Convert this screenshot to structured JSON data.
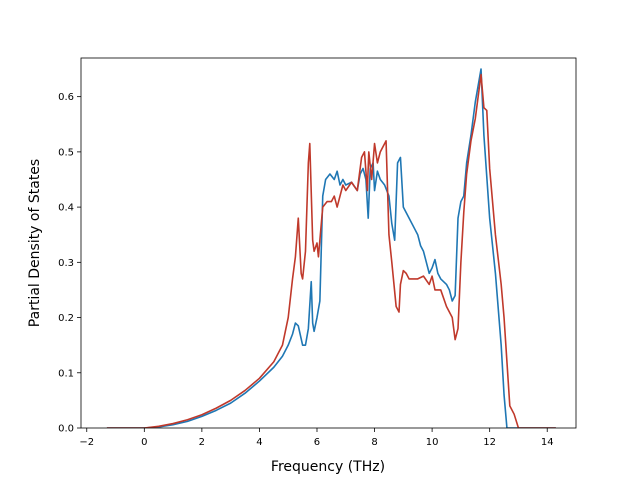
{
  "chart_data": {
    "type": "line",
    "title": "",
    "xlabel": "Frequency (THz)",
    "ylabel": "Partial Density of States",
    "xlim": [
      -2.2,
      15.0
    ],
    "ylim": [
      0.0,
      0.67
    ],
    "xticks": [
      -2,
      0,
      2,
      4,
      6,
      8,
      10,
      12,
      14
    ],
    "yticks": [
      0.0,
      0.1,
      0.2,
      0.3,
      0.4,
      0.5,
      0.6
    ],
    "xtick_labels": [
      "−2",
      "0",
      "2",
      "4",
      "6",
      "8",
      "10",
      "12",
      "14"
    ],
    "ytick_labels": [
      "0.0",
      "0.1",
      "0.2",
      "0.3",
      "0.4",
      "0.5",
      "0.6"
    ],
    "grid": false,
    "legend": "none",
    "series": [
      {
        "color": "#1f77b4",
        "points": [
          [
            -1.3,
            0.0
          ],
          [
            0.0,
            0.0
          ],
          [
            0.5,
            0.002
          ],
          [
            1.0,
            0.006
          ],
          [
            1.5,
            0.012
          ],
          [
            2.0,
            0.021
          ],
          [
            2.5,
            0.032
          ],
          [
            3.0,
            0.045
          ],
          [
            3.5,
            0.063
          ],
          [
            4.0,
            0.085
          ],
          [
            4.5,
            0.11
          ],
          [
            4.8,
            0.13
          ],
          [
            5.0,
            0.15
          ],
          [
            5.15,
            0.17
          ],
          [
            5.25,
            0.19
          ],
          [
            5.35,
            0.185
          ],
          [
            5.5,
            0.15
          ],
          [
            5.6,
            0.15
          ],
          [
            5.7,
            0.18
          ],
          [
            5.8,
            0.265
          ],
          [
            5.85,
            0.19
          ],
          [
            5.9,
            0.175
          ],
          [
            6.0,
            0.2
          ],
          [
            6.1,
            0.23
          ],
          [
            6.2,
            0.42
          ],
          [
            6.3,
            0.45
          ],
          [
            6.45,
            0.46
          ],
          [
            6.6,
            0.45
          ],
          [
            6.7,
            0.465
          ],
          [
            6.8,
            0.44
          ],
          [
            6.9,
            0.45
          ],
          [
            7.0,
            0.44
          ],
          [
            7.2,
            0.445
          ],
          [
            7.4,
            0.43
          ],
          [
            7.5,
            0.46
          ],
          [
            7.6,
            0.47
          ],
          [
            7.7,
            0.45
          ],
          [
            7.78,
            0.38
          ],
          [
            7.85,
            0.47
          ],
          [
            7.95,
            0.48
          ],
          [
            8.0,
            0.43
          ],
          [
            8.1,
            0.465
          ],
          [
            8.2,
            0.45
          ],
          [
            8.35,
            0.44
          ],
          [
            8.5,
            0.42
          ],
          [
            8.6,
            0.37
          ],
          [
            8.7,
            0.34
          ],
          [
            8.8,
            0.48
          ],
          [
            8.9,
            0.49
          ],
          [
            9.0,
            0.4
          ],
          [
            9.2,
            0.38
          ],
          [
            9.4,
            0.36
          ],
          [
            9.5,
            0.35
          ],
          [
            9.6,
            0.33
          ],
          [
            9.7,
            0.32
          ],
          [
            9.8,
            0.3
          ],
          [
            9.9,
            0.28
          ],
          [
            10.0,
            0.29
          ],
          [
            10.1,
            0.305
          ],
          [
            10.2,
            0.28
          ],
          [
            10.3,
            0.27
          ],
          [
            10.5,
            0.26
          ],
          [
            10.6,
            0.25
          ],
          [
            10.7,
            0.23
          ],
          [
            10.8,
            0.24
          ],
          [
            10.9,
            0.38
          ],
          [
            11.0,
            0.41
          ],
          [
            11.1,
            0.42
          ],
          [
            11.2,
            0.48
          ],
          [
            11.35,
            0.53
          ],
          [
            11.5,
            0.59
          ],
          [
            11.6,
            0.62
          ],
          [
            11.7,
            0.65
          ],
          [
            11.8,
            0.53
          ],
          [
            12.0,
            0.38
          ],
          [
            12.2,
            0.28
          ],
          [
            12.4,
            0.15
          ],
          [
            12.5,
            0.06
          ],
          [
            12.6,
            0.0
          ],
          [
            14.3,
            0.0
          ]
        ]
      },
      {
        "color": "#c0392b",
        "points": [
          [
            -1.3,
            0.0
          ],
          [
            0.0,
            0.0
          ],
          [
            0.5,
            0.003
          ],
          [
            1.0,
            0.008
          ],
          [
            1.5,
            0.015
          ],
          [
            2.0,
            0.024
          ],
          [
            2.5,
            0.036
          ],
          [
            3.0,
            0.05
          ],
          [
            3.5,
            0.068
          ],
          [
            4.0,
            0.09
          ],
          [
            4.5,
            0.12
          ],
          [
            4.8,
            0.15
          ],
          [
            5.0,
            0.2
          ],
          [
            5.15,
            0.27
          ],
          [
            5.25,
            0.31
          ],
          [
            5.35,
            0.38
          ],
          [
            5.45,
            0.28
          ],
          [
            5.5,
            0.27
          ],
          [
            5.6,
            0.32
          ],
          [
            5.7,
            0.48
          ],
          [
            5.75,
            0.515
          ],
          [
            5.85,
            0.34
          ],
          [
            5.9,
            0.32
          ],
          [
            6.0,
            0.335
          ],
          [
            6.05,
            0.31
          ],
          [
            6.2,
            0.4
          ],
          [
            6.35,
            0.41
          ],
          [
            6.5,
            0.41
          ],
          [
            6.6,
            0.42
          ],
          [
            6.7,
            0.4
          ],
          [
            6.8,
            0.42
          ],
          [
            6.9,
            0.44
          ],
          [
            7.0,
            0.43
          ],
          [
            7.2,
            0.445
          ],
          [
            7.4,
            0.43
          ],
          [
            7.55,
            0.49
          ],
          [
            7.65,
            0.5
          ],
          [
            7.75,
            0.43
          ],
          [
            7.8,
            0.5
          ],
          [
            7.9,
            0.45
          ],
          [
            8.0,
            0.515
          ],
          [
            8.1,
            0.48
          ],
          [
            8.2,
            0.5
          ],
          [
            8.3,
            0.51
          ],
          [
            8.4,
            0.52
          ],
          [
            8.5,
            0.35
          ],
          [
            8.6,
            0.3
          ],
          [
            8.75,
            0.22
          ],
          [
            8.85,
            0.21
          ],
          [
            8.9,
            0.26
          ],
          [
            9.0,
            0.285
          ],
          [
            9.1,
            0.28
          ],
          [
            9.2,
            0.27
          ],
          [
            9.5,
            0.27
          ],
          [
            9.7,
            0.275
          ],
          [
            9.9,
            0.26
          ],
          [
            10.0,
            0.275
          ],
          [
            10.1,
            0.25
          ],
          [
            10.3,
            0.25
          ],
          [
            10.5,
            0.22
          ],
          [
            10.7,
            0.2
          ],
          [
            10.8,
            0.16
          ],
          [
            10.9,
            0.18
          ],
          [
            11.0,
            0.3
          ],
          [
            11.1,
            0.39
          ],
          [
            11.2,
            0.46
          ],
          [
            11.35,
            0.52
          ],
          [
            11.5,
            0.56
          ],
          [
            11.6,
            0.6
          ],
          [
            11.7,
            0.64
          ],
          [
            11.8,
            0.58
          ],
          [
            11.9,
            0.575
          ],
          [
            12.0,
            0.47
          ],
          [
            12.2,
            0.35
          ],
          [
            12.4,
            0.26
          ],
          [
            12.5,
            0.2
          ],
          [
            12.6,
            0.12
          ],
          [
            12.7,
            0.04
          ],
          [
            12.85,
            0.025
          ],
          [
            13.0,
            0.0
          ],
          [
            14.3,
            0.0
          ]
        ]
      }
    ]
  }
}
